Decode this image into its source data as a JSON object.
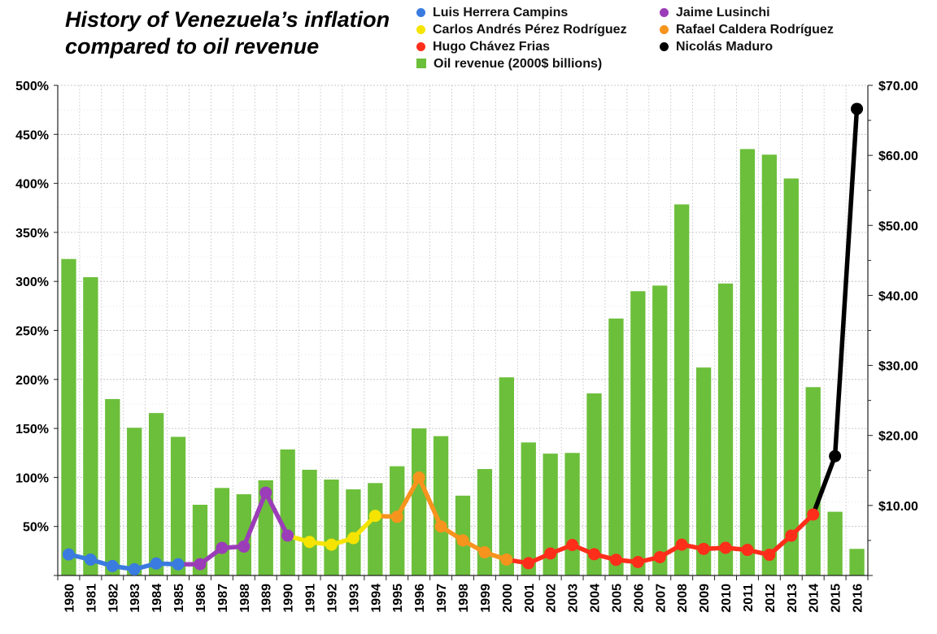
{
  "title_lines": [
    "History of Venezuela’s inflation",
    "compared to oil revenue"
  ],
  "legend": [
    {
      "label": "Luis Herrera Campins",
      "color": "#3a7be0",
      "shape": "dot"
    },
    {
      "label": "Carlos Andrés Pérez Rodríguez",
      "color": "#f5e400",
      "shape": "dot"
    },
    {
      "label": "Hugo Chávez Frias",
      "color": "#ff2e1a",
      "shape": "dot"
    },
    {
      "label": "Oil revenue (2000$ billions)",
      "color": "#6cbf3a",
      "shape": "square"
    },
    {
      "label": "Jaime Lusinchi",
      "color": "#9b3db8",
      "shape": "dot"
    },
    {
      "label": "Rafael Caldera Rodríguez",
      "color": "#f7941d",
      "shape": "dot"
    },
    {
      "label": "Nicolás Maduro",
      "color": "#000000",
      "shape": "dot"
    }
  ],
  "chart_data": {
    "type": "bar+line",
    "title": "History of Venezuela’s inflation compared to oil revenue",
    "categories": [
      "1980",
      "1981",
      "1982",
      "1983",
      "1984",
      "1985",
      "1986",
      "1987",
      "1988",
      "1989",
      "1990",
      "1991",
      "1992",
      "1993",
      "1994",
      "1995",
      "1996",
      "1997",
      "1998",
      "1999",
      "2000",
      "2001",
      "2002",
      "2003",
      "2004",
      "2005",
      "2006",
      "2007",
      "2008",
      "2009",
      "2010",
      "2011",
      "2012",
      "2013",
      "2014",
      "2015",
      "2016"
    ],
    "bars": {
      "name": "Oil revenue (2000$ billions)",
      "axis": "right",
      "color": "#6cbf3a",
      "values": [
        45.2,
        42.6,
        25.2,
        21.1,
        23.2,
        19.8,
        10.1,
        12.5,
        11.6,
        13.6,
        18.0,
        15.1,
        13.7,
        12.3,
        13.2,
        15.6,
        21.0,
        19.9,
        11.4,
        15.2,
        28.3,
        19.0,
        17.4,
        17.5,
        26.0,
        36.7,
        40.6,
        41.4,
        53.0,
        29.7,
        41.7,
        60.9,
        60.1,
        56.7,
        26.9,
        9.1,
        3.8
      ]
    },
    "inflation_series": [
      {
        "name": "Luis Herrera Campins",
        "color": "#3a7be0",
        "from": 0,
        "to": 5
      },
      {
        "name": "Jaime Lusinchi",
        "color": "#9b3db8",
        "from": 5,
        "to": 10
      },
      {
        "name": "Carlos Andrés Pérez Rodríguez",
        "color": "#f5e400",
        "from": 10,
        "to": 14
      },
      {
        "name": "Rafael Caldera Rodríguez",
        "color": "#f7941d",
        "from": 14,
        "to": 20
      },
      {
        "name": "Hugo Chávez Frias",
        "color": "#ff2e1a",
        "from": 20,
        "to": 34
      },
      {
        "name": "Nicolás Maduro",
        "color": "#000000",
        "from": 34,
        "to": 36
      }
    ],
    "inflation_values": [
      21.5,
      16.2,
      9.6,
      6.3,
      12.2,
      11.4,
      11.5,
      28.1,
      29.5,
      84.5,
      40.7,
      34.2,
      31.4,
      38.1,
      60.8,
      59.9,
      99.9,
      50.0,
      35.8,
      23.6,
      16.2,
      12.5,
      22.4,
      31.1,
      21.7,
      16.0,
      13.7,
      18.7,
      31.4,
      27.1,
      28.2,
      26.1,
      21.1,
      40.6,
      62.2,
      121.7,
      476.0
    ],
    "inflation_marked": [
      true,
      true,
      true,
      true,
      true,
      true,
      true,
      true,
      true,
      true,
      true,
      true,
      true,
      true,
      true,
      true,
      true,
      true,
      true,
      true,
      true,
      true,
      true,
      true,
      true,
      true,
      true,
      true,
      true,
      true,
      true,
      true,
      true,
      true,
      true,
      true,
      true
    ],
    "y_left": {
      "min": 0,
      "max": 500,
      "step": 50,
      "ticks": [
        "50%",
        "100%",
        "150%",
        "200%",
        "250%",
        "300%",
        "350%",
        "400%",
        "450%",
        "500%"
      ]
    },
    "y_right": {
      "min": 0,
      "max": 70,
      "step": 10,
      "ticks": [
        "$10.00",
        "$20.00",
        "$30.00",
        "$40.00",
        "$50.00",
        "$60.00",
        "$70.00"
      ]
    },
    "grid": true,
    "legend_position": "top-right"
  }
}
